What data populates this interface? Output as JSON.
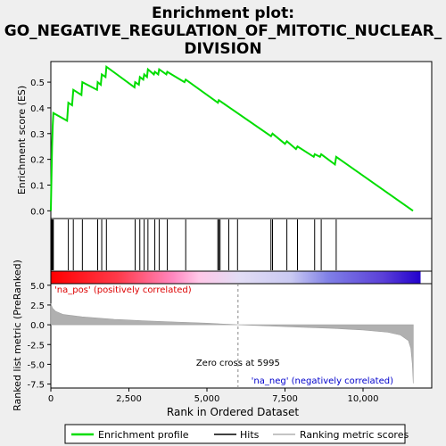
{
  "chart_data": {
    "type": "line",
    "title": "Enrichment plot: GO_NEGATIVE_REGULATION_OF_MITOTIC_NUCLEAR_DIVISION",
    "title_lines": [
      "Enrichment plot:",
      "GO_NEGATIVE_REGULATION_OF_MITOTIC_NUCLEAR_",
      "DIVISION"
    ],
    "xlabel": "Rank in Ordered Dataset",
    "es_panel": {
      "ylabel": "Enrichment score (ES)",
      "ylim": [
        -0.03,
        0.58
      ],
      "yticks": [
        0.0,
        0.1,
        0.2,
        0.3,
        0.4,
        0.5
      ],
      "ytick_labels": [
        "0.0",
        "0.1",
        "0.2",
        "0.3",
        "0.4",
        "0.5"
      ],
      "line_color": "#00dd00"
    },
    "rank_panel": {
      "ylabel": "Ranked list metric (PreRanked)",
      "ylim": [
        -8.0,
        5.2
      ],
      "yticks": [
        5.0,
        2.5,
        0.0,
        -2.5,
        -5.0,
        -7.5
      ],
      "ytick_labels": [
        "5.0",
        "2.5",
        "0.0",
        "-2.5",
        "-5.0",
        "-7.5"
      ],
      "metric_shape": [
        [
          0,
          2.7
        ],
        [
          50,
          2.1
        ],
        [
          150,
          1.7
        ],
        [
          400,
          1.3
        ],
        [
          1000,
          1.0
        ],
        [
          2000,
          0.7
        ],
        [
          3000,
          0.5
        ],
        [
          4000,
          0.35
        ],
        [
          5000,
          0.2
        ],
        [
          5995,
          0.0
        ],
        [
          7000,
          -0.15
        ],
        [
          8000,
          -0.3
        ],
        [
          9000,
          -0.45
        ],
        [
          10000,
          -0.65
        ],
        [
          10800,
          -0.95
        ],
        [
          11200,
          -1.3
        ],
        [
          11450,
          -2.0
        ],
        [
          11530,
          -3.0
        ],
        [
          11580,
          -5.0
        ],
        [
          11608,
          -7.4
        ]
      ],
      "zero_cross_label": "Zero cross at 5995",
      "pos_label": "'na_pos' (positively correlated)",
      "neg_label": "'na_neg' (negatively correlated)"
    },
    "xlim": [
      0,
      12200
    ],
    "xticks": [
      0,
      2500,
      5000,
      7500,
      10000
    ],
    "xtick_labels": [
      "0",
      "2,500",
      "5,000",
      "7,500",
      "10,000"
    ],
    "zero_cross": 5995,
    "es_curve": [
      [
        0,
        0.0
      ],
      [
        20,
        0.13
      ],
      [
        40,
        0.25
      ],
      [
        60,
        0.33
      ],
      [
        80,
        0.38
      ],
      [
        520,
        0.35
      ],
      [
        560,
        0.42
      ],
      [
        680,
        0.41
      ],
      [
        720,
        0.47
      ],
      [
        980,
        0.45
      ],
      [
        1010,
        0.5
      ],
      [
        1480,
        0.47
      ],
      [
        1500,
        0.5
      ],
      [
        1600,
        0.49
      ],
      [
        1630,
        0.53
      ],
      [
        1750,
        0.52
      ],
      [
        1780,
        0.56
      ],
      [
        2680,
        0.48
      ],
      [
        2700,
        0.5
      ],
      [
        2820,
        0.49
      ],
      [
        2850,
        0.52
      ],
      [
        2960,
        0.51
      ],
      [
        2990,
        0.53
      ],
      [
        3080,
        0.52
      ],
      [
        3110,
        0.55
      ],
      [
        3300,
        0.53
      ],
      [
        3330,
        0.54
      ],
      [
        3440,
        0.53
      ],
      [
        3470,
        0.55
      ],
      [
        3700,
        0.53
      ],
      [
        3730,
        0.54
      ],
      [
        4280,
        0.5
      ],
      [
        4320,
        0.51
      ],
      [
        5350,
        0.42
      ],
      [
        5380,
        0.43
      ],
      [
        7050,
        0.29
      ],
      [
        7100,
        0.3
      ],
      [
        7500,
        0.26
      ],
      [
        7560,
        0.27
      ],
      [
        7850,
        0.24
      ],
      [
        7900,
        0.25
      ],
      [
        8420,
        0.21
      ],
      [
        8450,
        0.22
      ],
      [
        8620,
        0.21
      ],
      [
        8660,
        0.22
      ],
      [
        9100,
        0.18
      ],
      [
        9140,
        0.21
      ],
      [
        11600,
        0.0
      ]
    ],
    "hits": [
      0,
      20,
      40,
      60,
      80,
      560,
      720,
      1010,
      1500,
      1630,
      1780,
      2700,
      2850,
      2990,
      3110,
      3330,
      3470,
      3730,
      4320,
      5350,
      5380,
      5420,
      5700,
      5980,
      7050,
      7100,
      7560,
      7900,
      8450,
      8660,
      9140
    ],
    "legend": [
      {
        "label": "Enrichment profile",
        "color": "#00dd00"
      },
      {
        "label": "Hits",
        "color": "#000000"
      },
      {
        "label": "Ranking metric scores",
        "color": "#b0b0b0"
      }
    ],
    "bar_gradient": [
      "#ff0000",
      "#ff6680",
      "#ffb3d9",
      "#dcdcf5",
      "#9999ee",
      "#5555dd",
      "#2200cc"
    ]
  }
}
